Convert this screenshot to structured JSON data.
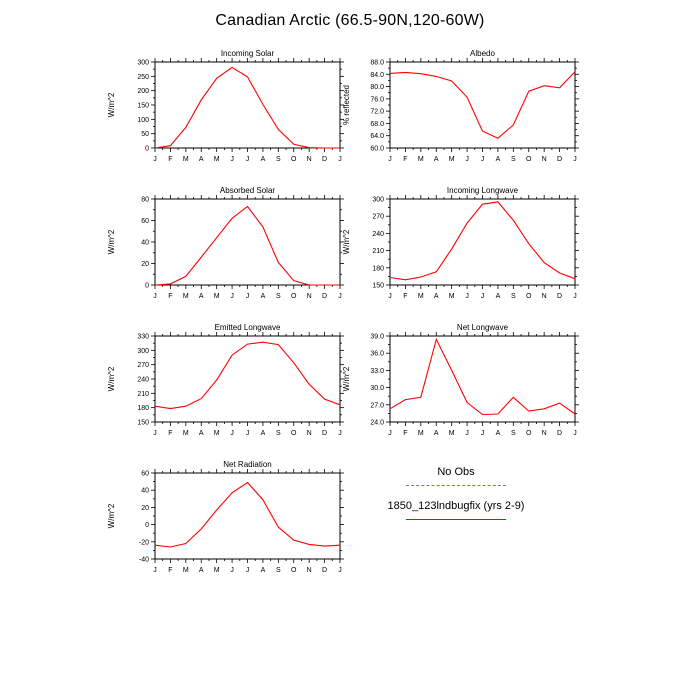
{
  "title": "Canadian Arctic (66.5-90N,120-60W)",
  "legend": {
    "entries": [
      {
        "label": "No Obs",
        "color": "#6b6bd4",
        "style": "dashed"
      },
      {
        "label": "1850_123lndbugfix (yrs 2-9)",
        "color": "#ff0000",
        "style": "solid"
      }
    ]
  },
  "chart_data": {
    "type": "line",
    "line_color": "#ff0000",
    "grid": false,
    "x_labels": [
      "J",
      "F",
      "M",
      "A",
      "M",
      "J",
      "J",
      "A",
      "S",
      "O",
      "N",
      "D",
      "J"
    ],
    "charts": [
      {
        "title": "Incoming Solar",
        "ylabel": "W/m^2",
        "ylim": [
          0,
          300
        ],
        "ytick_vals": [
          0,
          50,
          100,
          150,
          200,
          250,
          300
        ],
        "ytick_labels": [
          "0",
          "50",
          "100",
          "150",
          "200",
          "250",
          "300"
        ],
        "values": [
          0,
          8,
          72,
          168,
          243,
          281,
          248,
          152,
          65,
          13,
          1,
          0,
          0
        ]
      },
      {
        "title": "Albedo",
        "ylabel": "% reflected",
        "ylim": [
          60,
          88
        ],
        "ytick_vals": [
          60,
          64,
          68,
          72,
          76,
          80,
          84,
          88
        ],
        "ytick_labels": [
          "60.0",
          "64.0",
          "68.0",
          "72.0",
          "76.0",
          "80.0",
          "84.0",
          "88.0"
        ],
        "values": [
          84.3,
          84.6,
          84.2,
          83.3,
          81.8,
          76.5,
          65.5,
          63.2,
          67.5,
          78.5,
          80.3,
          79.6,
          84.8
        ]
      },
      {
        "title": "Absorbed Solar",
        "ylabel": "W/m^2",
        "ylim": [
          0,
          80
        ],
        "ytick_vals": [
          0,
          20,
          40,
          60,
          80
        ],
        "ytick_labels": [
          "0",
          "20",
          "40",
          "60",
          "80"
        ],
        "values": [
          0,
          1,
          8,
          26,
          44,
          62,
          73,
          54,
          21,
          4,
          0,
          0,
          0
        ]
      },
      {
        "title": "Incoming Longwave",
        "ylabel": "W/m^2",
        "ylim": [
          150,
          300
        ],
        "ytick_vals": [
          150,
          180,
          210,
          240,
          270,
          300
        ],
        "ytick_labels": [
          "150",
          "180",
          "210",
          "240",
          "270",
          "300"
        ],
        "values": [
          163,
          159,
          164,
          173,
          213,
          258,
          291,
          295,
          263,
          222,
          189,
          171,
          161
        ]
      },
      {
        "title": "Emitted Longwave",
        "ylabel": "W/m^2",
        "ylim": [
          150,
          330
        ],
        "ytick_vals": [
          150,
          180,
          210,
          240,
          270,
          300,
          330
        ],
        "ytick_labels": [
          "150",
          "180",
          "210",
          "240",
          "270",
          "300",
          "330"
        ],
        "values": [
          183,
          178,
          183,
          199,
          238,
          290,
          313,
          317,
          312,
          274,
          229,
          198,
          186
        ]
      },
      {
        "title": "Net Longwave",
        "ylabel": "W/m^2",
        "ylim": [
          24,
          39
        ],
        "ytick_vals": [
          24,
          27,
          30,
          33,
          36,
          39
        ],
        "ytick_labels": [
          "24.0",
          "27.0",
          "30.0",
          "33.0",
          "36.0",
          "39.0"
        ],
        "values": [
          26.3,
          27.9,
          28.3,
          38.4,
          33.0,
          27.4,
          25.3,
          25.4,
          28.3,
          25.9,
          26.3,
          27.3,
          25.4
        ]
      },
      {
        "title": "Net Radiation",
        "ylabel": "W/m^2",
        "ylim": [
          -40,
          60
        ],
        "ytick_vals": [
          -40,
          -20,
          0,
          20,
          40,
          60
        ],
        "ytick_labels": [
          "-40",
          "-20",
          "0",
          "20",
          "40",
          "60"
        ],
        "values": [
          -24,
          -26,
          -22,
          -5,
          17,
          37,
          49,
          29,
          -3,
          -18,
          -23,
          -25,
          -24
        ]
      }
    ]
  }
}
